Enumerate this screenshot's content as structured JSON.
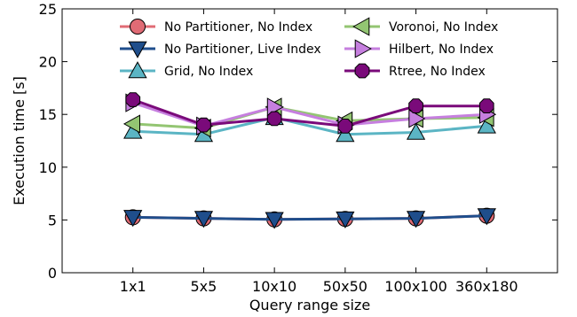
{
  "chart_data": {
    "type": "line",
    "categories": [
      "1x1",
      "5x5",
      "10x10",
      "50x50",
      "100x100",
      "360x180"
    ],
    "xlabel": "Query range size",
    "ylabel": "Execution time [s]",
    "ylim": [
      0,
      25
    ],
    "yticks": [
      "0",
      "5",
      "10",
      "15",
      "20",
      "25"
    ],
    "grid": false,
    "legend_position": "top",
    "series": [
      {
        "name": "No Partitioner, No Index",
        "color": "#e06b75",
        "marker": "circle",
        "values": [
          5.25,
          5.15,
          5.05,
          5.1,
          5.15,
          5.4
        ]
      },
      {
        "name": "No Partitioner, Live Index",
        "color": "#1f4e8c",
        "marker": "triangle-down",
        "values": [
          5.25,
          5.15,
          5.05,
          5.1,
          5.15,
          5.4
        ]
      },
      {
        "name": "Grid, No Index",
        "color": "#5bb5c4",
        "marker": "triangle-up",
        "values": [
          13.4,
          13.1,
          14.7,
          13.1,
          13.3,
          13.9
        ]
      },
      {
        "name": "Voronoi, No Index",
        "color": "#93c572",
        "marker": "triangle-left",
        "values": [
          14.1,
          13.7,
          15.7,
          14.4,
          14.6,
          14.7
        ]
      },
      {
        "name": "Hilbert, No Index",
        "color": "#c67fdf",
        "marker": "triangle-right",
        "values": [
          16.1,
          13.9,
          15.7,
          14.0,
          14.6,
          15.0
        ]
      },
      {
        "name": "Rtree, No Index",
        "color": "#7a0a7a",
        "marker": "octagon",
        "values": [
          16.4,
          14.0,
          14.6,
          13.9,
          15.8,
          15.8
        ]
      }
    ]
  }
}
